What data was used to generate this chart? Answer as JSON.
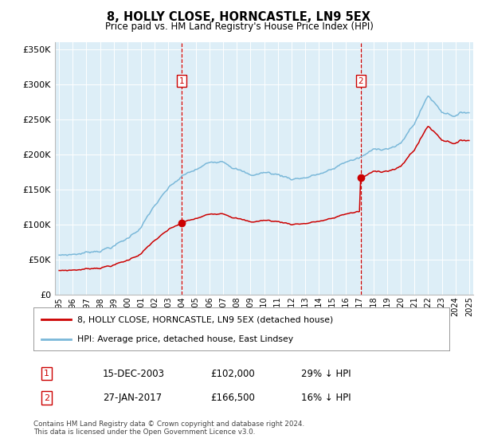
{
  "title": "8, HOLLY CLOSE, HORNCASTLE, LN9 5EX",
  "subtitle": "Price paid vs. HM Land Registry's House Price Index (HPI)",
  "hpi_color": "#7ab8d9",
  "price_color": "#cc0000",
  "vline_color": "#cc0000",
  "background_color": "#ddeef7",
  "ylim": [
    0,
    360000
  ],
  "yticks": [
    0,
    50000,
    100000,
    150000,
    200000,
    250000,
    300000,
    350000
  ],
  "purchase_1": {
    "date_num": 2003.96,
    "price": 102000,
    "label": "1",
    "date_str": "15-DEC-2003",
    "pct": "29% ↓ HPI"
  },
  "purchase_2": {
    "date_num": 2017.08,
    "price": 166500,
    "label": "2",
    "date_str": "27-JAN-2017",
    "pct": "16% ↓ HPI"
  },
  "legend_property": "8, HOLLY CLOSE, HORNCASTLE, LN9 5EX (detached house)",
  "legend_hpi": "HPI: Average price, detached house, East Lindsey",
  "footnote": "Contains HM Land Registry data © Crown copyright and database right 2024.\nThis data is licensed under the Open Government Licence v3.0.",
  "xmin": 1995,
  "xmax": 2025
}
